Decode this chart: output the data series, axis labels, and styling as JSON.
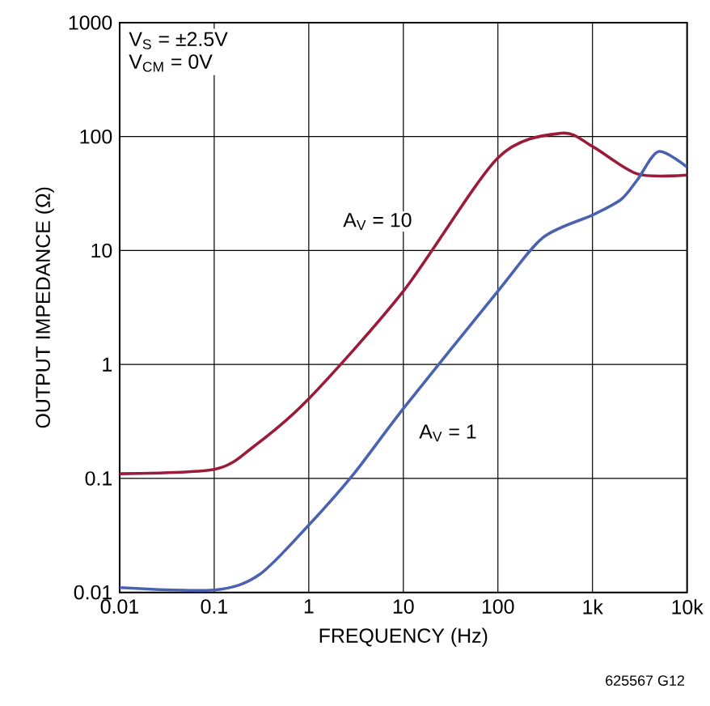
{
  "chart_data": {
    "type": "line",
    "xlabel": "FREQUENCY (Hz)",
    "ylabel": "OUTPUT IMPEDANCE (Ω)",
    "log": "xy",
    "grid": true,
    "marker": "none",
    "line_style": "solid",
    "xlim": [
      0.01,
      10000
    ],
    "ylim": [
      0.01,
      1000
    ],
    "xticks": [
      0.01,
      0.1,
      1,
      10,
      100,
      {
        "value": 1000,
        "label": "1k"
      },
      {
        "value": 10000,
        "label": "10k"
      }
    ],
    "yticks": [
      0.01,
      0.1,
      1,
      10,
      100,
      1000
    ],
    "annotations": [
      "V$_{S}$ = ±2.5V",
      "V$_{CM}$ = 0V",
      "625567 G12"
    ],
    "series": [
      {
        "name": "A$_{V}$ = 10",
        "color": "#9b1b3a",
        "x": [
          0.01,
          0.1,
          0.26,
          1,
          10,
          100,
          470,
          1000,
          3000,
          10000
        ],
        "values": [
          0.11,
          0.12,
          0.19,
          0.5,
          4.4,
          65,
          107,
          82,
          47,
          46
        ]
      },
      {
        "name": "A$_{V}$ = 1",
        "color": "#4a62b0",
        "x": [
          0.01,
          0.1,
          0.3,
          1,
          3,
          10,
          100,
          300,
          1000,
          2000,
          3000,
          5000,
          10000
        ],
        "values": [
          0.011,
          0.0105,
          0.0143,
          0.039,
          0.11,
          0.41,
          4.4,
          13,
          20.5,
          28,
          42,
          74,
          54
        ]
      }
    ]
  }
}
